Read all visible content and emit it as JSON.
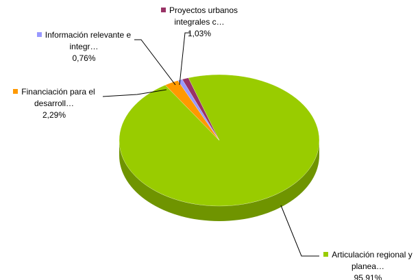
{
  "chart_data": {
    "type": "pie",
    "categories": [
      "Articulación regional y planea…",
      "Financiación para el desarroll…",
      "Información relevante e integr…",
      "Proyectos urbanos integrales c…"
    ],
    "values": [
      95.91,
      2.29,
      0.76,
      1.03
    ],
    "value_labels": [
      "95,91%",
      "2,29%",
      "0,76%",
      "1,03%"
    ],
    "colors": [
      "#99cc00",
      "#ff9900",
      "#9999ff",
      "#993366"
    ]
  }
}
